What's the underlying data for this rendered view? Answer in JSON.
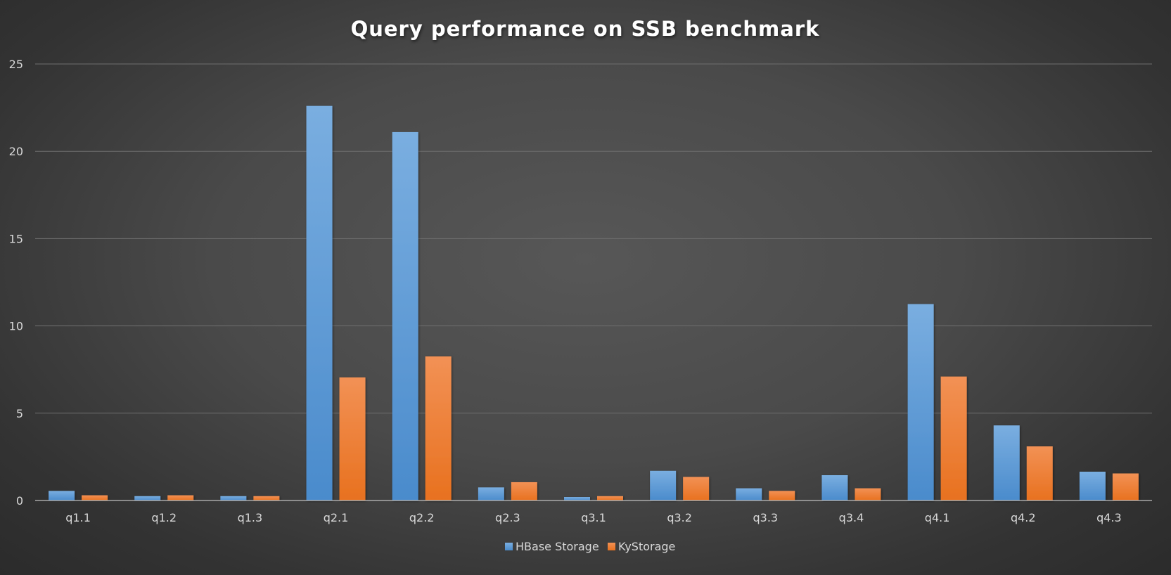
{
  "chart_data": {
    "type": "bar",
    "title": "Query performance on SSB benchmark",
    "categories": [
      "q1.1",
      "q1.2",
      "q1.3",
      "q2.1",
      "q2.2",
      "q2.3",
      "q3.1",
      "q3.2",
      "q3.3",
      "q3.4",
      "q4.1",
      "q4.2",
      "q4.3"
    ],
    "series": [
      {
        "name": "HBase Storage",
        "color": "#5b9bd5",
        "values": [
          0.55,
          0.25,
          0.25,
          22.6,
          21.1,
          0.75,
          0.2,
          1.7,
          0.7,
          1.45,
          11.25,
          4.3,
          1.65
        ]
      },
      {
        "name": "KyStorage",
        "color": "#ed7d31",
        "values": [
          0.3,
          0.3,
          0.25,
          7.05,
          8.25,
          1.05,
          0.25,
          1.35,
          0.55,
          0.7,
          7.1,
          3.1,
          1.55
        ]
      }
    ],
    "ylim": [
      0,
      25
    ],
    "yticks": [
      0,
      5,
      10,
      15,
      20,
      25
    ],
    "xlabel": "",
    "ylabel": "",
    "grid": true,
    "legend": "bottom"
  }
}
